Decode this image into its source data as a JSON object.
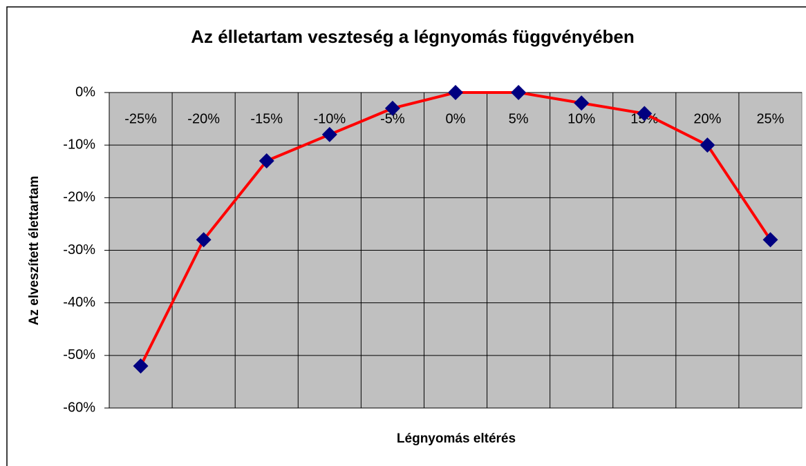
{
  "chart_data": {
    "type": "line",
    "title": "Az élletartam veszteség a légnyomás függvényében",
    "x_label": "Légnyomás eltérés",
    "y_label": "Az elveszített élettartam",
    "categories": [
      "-25%",
      "-20%",
      "-15%",
      "-10%",
      "-5%",
      "0%",
      "5%",
      "10%",
      "15%",
      "20%",
      "25%"
    ],
    "series": [
      {
        "color": "#ff0000",
        "marker_color": "#000080",
        "values": [
          -52,
          -28,
          -13,
          -8,
          -3,
          0,
          0,
          -2,
          -4,
          -10,
          -28
        ]
      }
    ],
    "ylim": [
      -60,
      0
    ],
    "yticks": [
      {
        "value": 0,
        "label": "0%"
      },
      {
        "value": -10,
        "label": "-10%"
      },
      {
        "value": -20,
        "label": "-20%"
      },
      {
        "value": -30,
        "label": "-30%"
      },
      {
        "value": -40,
        "label": "-40%"
      },
      {
        "value": -50,
        "label": "-50%"
      },
      {
        "value": -60,
        "label": "-60%"
      }
    ],
    "grid": true,
    "plot_background": "#c0c0c0"
  }
}
